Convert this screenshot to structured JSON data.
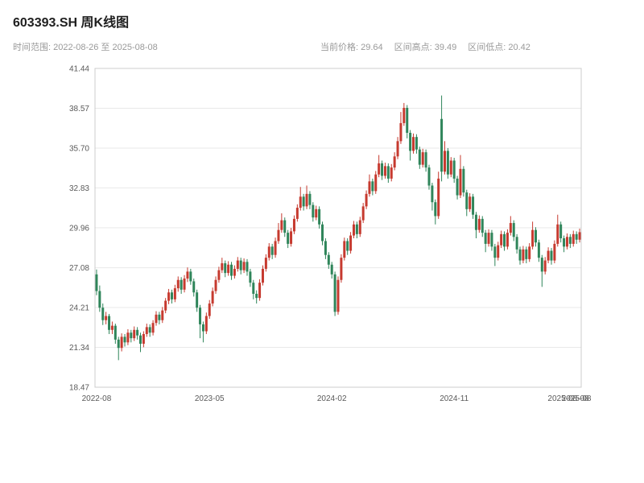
{
  "header": {
    "title": "603393.SH 周K线图",
    "date_range": "时间范围: 2022-08-26 至 2025-08-08",
    "current_price": "当前价格: 29.64",
    "interval_high": "区间高点: 39.49",
    "interval_low": "区间低点: 20.42"
  },
  "chart_data": {
    "type": "candlestick",
    "symbol": "603393.SH",
    "period": "weekly",
    "title": "603393.SH 周K线图",
    "y_min": 18.47,
    "y_max": 41.44,
    "y_tick_labels": [
      "41.44",
      "38.57",
      "35.70",
      "32.83",
      "29.96",
      "27.08",
      "24.21",
      "21.34",
      "18.47"
    ],
    "x_ticks": [
      {
        "label": "2022-08",
        "index": 0
      },
      {
        "label": "2023-05",
        "index": 36
      },
      {
        "label": "2024-02",
        "index": 75
      },
      {
        "label": "2024-11",
        "index": 114
      },
      {
        "label": "2025-08",
        "index": 153
      }
    ],
    "x_end_label": "2025-08-08",
    "up_color": "#c63a2f",
    "down_color": "#2f855a",
    "grid_color": "#e9e9e9",
    "border_color": "#cccccc",
    "grid": "horizontal",
    "candles": [
      [
        26.6,
        26.95,
        25.1,
        25.4
      ],
      [
        25.4,
        25.8,
        23.9,
        24.2
      ],
      [
        24.2,
        24.5,
        22.95,
        23.3
      ],
      [
        23.3,
        23.9,
        23.0,
        23.6
      ],
      [
        23.6,
        23.75,
        22.3,
        22.6
      ],
      [
        22.6,
        23.2,
        22.3,
        22.9
      ],
      [
        22.9,
        23.05,
        21.6,
        21.9
      ],
      [
        21.9,
        22.1,
        20.42,
        21.3
      ],
      [
        21.3,
        22.35,
        21.05,
        22.1
      ],
      [
        22.1,
        22.3,
        21.4,
        21.7
      ],
      [
        21.7,
        22.65,
        21.5,
        22.4
      ],
      [
        22.4,
        22.6,
        21.7,
        22.0
      ],
      [
        22.0,
        22.85,
        21.8,
        22.6
      ],
      [
        22.6,
        22.8,
        21.9,
        22.2
      ],
      [
        22.2,
        22.4,
        21.0,
        21.6
      ],
      [
        21.6,
        22.5,
        21.35,
        22.3
      ],
      [
        22.3,
        23.05,
        22.1,
        22.8
      ],
      [
        22.8,
        23.0,
        22.1,
        22.4
      ],
      [
        22.4,
        23.3,
        22.2,
        23.1
      ],
      [
        23.1,
        23.95,
        22.9,
        23.7
      ],
      [
        23.7,
        23.9,
        23.0,
        23.3
      ],
      [
        23.3,
        24.25,
        23.1,
        24.0
      ],
      [
        24.0,
        24.9,
        23.8,
        24.7
      ],
      [
        24.7,
        25.55,
        24.45,
        25.3
      ],
      [
        25.3,
        25.5,
        24.5,
        24.8
      ],
      [
        24.8,
        25.85,
        24.6,
        25.6
      ],
      [
        25.6,
        26.45,
        25.35,
        26.2
      ],
      [
        26.2,
        26.4,
        25.2,
        25.5
      ],
      [
        25.5,
        26.55,
        25.3,
        26.3
      ],
      [
        26.3,
        27.1,
        26.05,
        26.8
      ],
      [
        26.8,
        27.0,
        25.85,
        26.1
      ],
      [
        26.1,
        26.3,
        25.0,
        25.3
      ],
      [
        25.3,
        25.5,
        23.9,
        24.2
      ],
      [
        24.2,
        24.4,
        22.0,
        23.0
      ],
      [
        23.0,
        23.2,
        21.7,
        22.5
      ],
      [
        22.5,
        23.85,
        22.3,
        23.6
      ],
      [
        23.6,
        24.75,
        23.4,
        24.5
      ],
      [
        24.5,
        25.65,
        24.3,
        25.4
      ],
      [
        25.4,
        26.45,
        25.2,
        26.2
      ],
      [
        26.2,
        27.15,
        26.0,
        26.9
      ],
      [
        26.9,
        27.8,
        26.7,
        27.4
      ],
      [
        27.4,
        27.6,
        26.4,
        26.7
      ],
      [
        26.7,
        27.55,
        26.5,
        27.3
      ],
      [
        27.3,
        27.5,
        26.2,
        26.5
      ],
      [
        26.5,
        27.25,
        26.3,
        27.0
      ],
      [
        27.0,
        27.85,
        26.8,
        27.6
      ],
      [
        27.6,
        27.8,
        26.6,
        26.9
      ],
      [
        26.9,
        27.75,
        26.7,
        27.5
      ],
      [
        27.5,
        27.7,
        26.5,
        26.8
      ],
      [
        26.8,
        27.0,
        25.7,
        26.0
      ],
      [
        26.0,
        26.2,
        24.8,
        25.2
      ],
      [
        25.2,
        25.45,
        24.5,
        24.9
      ],
      [
        24.9,
        26.25,
        24.7,
        26.0
      ],
      [
        26.0,
        27.25,
        25.8,
        27.0
      ],
      [
        27.0,
        28.05,
        26.8,
        27.8
      ],
      [
        27.8,
        28.85,
        27.6,
        28.6
      ],
      [
        28.6,
        28.8,
        27.7,
        28.0
      ],
      [
        28.0,
        29.25,
        27.8,
        29.0
      ],
      [
        29.0,
        30.3,
        28.8,
        29.8
      ],
      [
        29.8,
        31.0,
        29.6,
        30.5
      ],
      [
        30.5,
        30.7,
        29.3,
        29.6
      ],
      [
        29.6,
        29.8,
        28.5,
        28.8
      ],
      [
        28.8,
        29.95,
        28.6,
        29.7
      ],
      [
        29.7,
        30.85,
        29.5,
        30.6
      ],
      [
        30.6,
        31.65,
        30.4,
        31.4
      ],
      [
        31.4,
        32.9,
        31.2,
        32.2
      ],
      [
        32.2,
        32.4,
        31.2,
        31.5
      ],
      [
        31.5,
        33.0,
        31.3,
        32.4
      ],
      [
        32.4,
        32.6,
        31.3,
        31.6
      ],
      [
        31.6,
        31.8,
        30.4,
        30.7
      ],
      [
        30.7,
        31.55,
        30.5,
        31.3
      ],
      [
        31.3,
        31.5,
        29.9,
        30.2
      ],
      [
        30.2,
        30.4,
        28.7,
        29.0
      ],
      [
        29.0,
        29.2,
        27.7,
        28.0
      ],
      [
        28.0,
        28.2,
        27.0,
        27.3
      ],
      [
        27.3,
        27.5,
        26.3,
        26.6
      ],
      [
        26.6,
        26.8,
        23.6,
        23.9
      ],
      [
        23.9,
        26.45,
        23.7,
        26.2
      ],
      [
        26.2,
        28.05,
        26.0,
        27.8
      ],
      [
        27.8,
        29.25,
        27.6,
        29.0
      ],
      [
        29.0,
        29.2,
        28.0,
        28.3
      ],
      [
        28.3,
        29.65,
        28.1,
        29.4
      ],
      [
        29.4,
        30.45,
        29.2,
        30.2
      ],
      [
        30.2,
        30.4,
        29.2,
        29.5
      ],
      [
        29.5,
        30.75,
        29.3,
        30.5
      ],
      [
        30.5,
        31.75,
        30.3,
        31.5
      ],
      [
        31.5,
        32.65,
        31.3,
        32.4
      ],
      [
        32.4,
        33.8,
        32.2,
        33.3
      ],
      [
        33.3,
        33.5,
        32.3,
        32.6
      ],
      [
        32.6,
        34.05,
        32.4,
        33.8
      ],
      [
        33.8,
        35.2,
        33.6,
        34.6
      ],
      [
        34.6,
        34.8,
        33.4,
        33.7
      ],
      [
        33.7,
        34.65,
        33.5,
        34.4
      ],
      [
        34.4,
        34.6,
        33.2,
        33.5
      ],
      [
        33.5,
        34.55,
        33.3,
        34.3
      ],
      [
        34.3,
        35.4,
        34.1,
        35.1
      ],
      [
        35.1,
        36.5,
        34.9,
        36.2
      ],
      [
        36.2,
        38.3,
        36.0,
        37.5
      ],
      [
        37.5,
        38.95,
        37.3,
        38.6
      ],
      [
        38.6,
        38.8,
        36.4,
        36.8
      ],
      [
        36.8,
        37.0,
        34.8,
        35.5
      ],
      [
        35.5,
        36.75,
        35.3,
        36.5
      ],
      [
        36.5,
        36.7,
        35.3,
        35.6
      ],
      [
        35.6,
        35.8,
        34.2,
        34.5
      ],
      [
        34.5,
        35.65,
        34.3,
        35.4
      ],
      [
        35.4,
        35.6,
        34.0,
        34.3
      ],
      [
        34.3,
        34.5,
        32.7,
        33.0
      ],
      [
        33.0,
        33.2,
        31.2,
        31.8
      ],
      [
        31.8,
        32.0,
        30.2,
        30.8
      ],
      [
        30.8,
        34.0,
        30.6,
        33.5
      ],
      [
        37.8,
        39.49,
        33.3,
        34.0
      ],
      [
        34.0,
        36.2,
        33.8,
        35.5
      ],
      [
        35.5,
        35.7,
        33.5,
        33.8
      ],
      [
        33.8,
        35.05,
        33.6,
        34.8
      ],
      [
        34.8,
        35.0,
        33.2,
        33.5
      ],
      [
        33.5,
        33.7,
        32.0,
        32.3
      ],
      [
        32.3,
        35.2,
        32.1,
        34.2
      ],
      [
        34.2,
        34.4,
        32.2,
        32.5
      ],
      [
        32.5,
        32.7,
        30.8,
        31.3
      ],
      [
        31.3,
        32.45,
        31.1,
        32.2
      ],
      [
        32.2,
        32.4,
        30.6,
        30.9
      ],
      [
        30.9,
        31.1,
        29.2,
        29.8
      ],
      [
        29.8,
        30.85,
        29.6,
        30.6
      ],
      [
        30.6,
        30.8,
        29.3,
        29.6
      ],
      [
        29.6,
        29.8,
        28.2,
        28.8
      ],
      [
        28.8,
        29.85,
        28.6,
        29.6
      ],
      [
        29.6,
        29.8,
        28.3,
        28.6
      ],
      [
        28.6,
        28.8,
        27.2,
        27.8
      ],
      [
        27.8,
        28.95,
        27.6,
        28.7
      ],
      [
        28.7,
        29.75,
        28.5,
        29.5
      ],
      [
        29.5,
        29.7,
        28.3,
        28.6
      ],
      [
        28.6,
        29.85,
        28.4,
        29.6
      ],
      [
        29.6,
        30.8,
        29.4,
        30.3
      ],
      [
        30.3,
        30.5,
        29.0,
        29.3
      ],
      [
        29.3,
        29.5,
        28.1,
        28.4
      ],
      [
        28.4,
        28.6,
        27.3,
        27.6
      ],
      [
        27.6,
        28.65,
        27.4,
        28.4
      ],
      [
        28.4,
        28.6,
        27.4,
        27.7
      ],
      [
        27.7,
        28.85,
        27.5,
        28.6
      ],
      [
        28.6,
        30.4,
        28.4,
        29.8
      ],
      [
        29.8,
        30.0,
        28.6,
        28.9
      ],
      [
        28.9,
        29.1,
        27.5,
        27.8
      ],
      [
        27.8,
        28.0,
        25.7,
        26.8
      ],
      [
        26.8,
        27.85,
        26.6,
        27.6
      ],
      [
        27.6,
        28.55,
        27.4,
        28.3
      ],
      [
        28.3,
        28.5,
        27.3,
        27.6
      ],
      [
        27.6,
        29.05,
        27.4,
        28.8
      ],
      [
        28.8,
        30.9,
        28.6,
        30.2
      ],
      [
        30.2,
        30.4,
        28.9,
        29.2
      ],
      [
        29.2,
        29.4,
        28.2,
        28.6
      ],
      [
        28.6,
        29.55,
        28.4,
        29.3
      ],
      [
        29.3,
        29.5,
        28.5,
        28.8
      ],
      [
        28.8,
        29.75,
        28.6,
        29.5
      ],
      [
        29.5,
        29.7,
        28.8,
        29.1
      ],
      [
        29.1,
        29.9,
        28.9,
        29.64
      ]
    ]
  }
}
